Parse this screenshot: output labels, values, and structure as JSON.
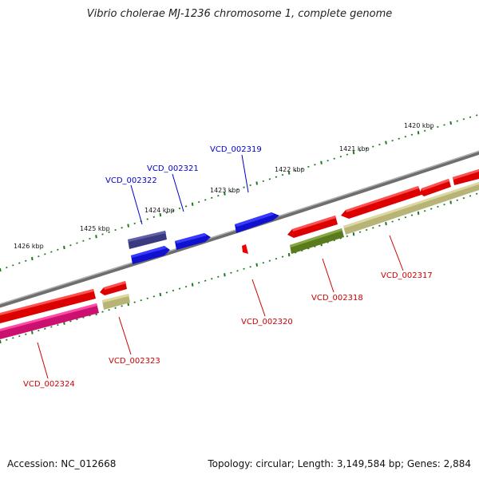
{
  "title": "Vibrio cholerae MJ-1236 chromosome 1, complete genome",
  "footer": {
    "accession": "Accession: NC_012668",
    "summary": "Topology: circular; Length: 3,149,584 bp; Genes: 2,884"
  },
  "colors": {
    "backbone": "#888888",
    "tick": "#1a7a1a",
    "forward_label": "#0000cc",
    "reverse_label": "#cc0000"
  },
  "kbp_labels": [
    "1420 kbp",
    "1421 kbp",
    "1422 kbp",
    "1423 kbp",
    "1424 kbp",
    "1425 kbp",
    "1426 kbp"
  ],
  "genes": [
    {
      "id": "VCD_002319",
      "strand": "forward",
      "color": "#0000ee"
    },
    {
      "id": "VCD_002321",
      "strand": "forward",
      "color": "#0000ee"
    },
    {
      "id": "VCD_002322",
      "strand": "forward",
      "color": "#3c3c8c"
    },
    {
      "id": "VCD_002320",
      "strand": "reverse",
      "color": "#ee0000"
    },
    {
      "id": "VCD_002318",
      "strand": "reverse",
      "color": "#5a7a1e"
    },
    {
      "id": "VCD_002317",
      "strand": "reverse",
      "color": "#b8b478"
    },
    {
      "id": "VCD_002323",
      "strand": "reverse",
      "color": "#b8b478"
    },
    {
      "id": "VCD_002324",
      "strand": "reverse",
      "color": "#e8137a"
    }
  ]
}
